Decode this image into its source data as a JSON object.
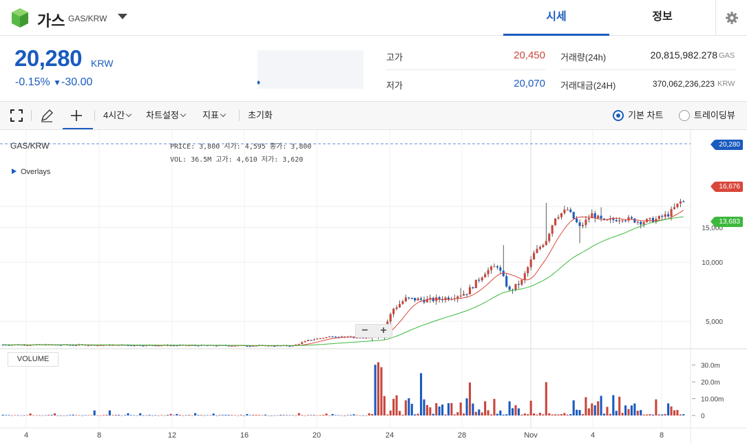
{
  "header": {
    "coin_name": "가스",
    "coin_pair": "GAS/KRW",
    "coin_icon": "neo-gas-cube-icon",
    "tabs": [
      {
        "label": "시세",
        "active": true
      },
      {
        "label": "정보",
        "active": false
      }
    ]
  },
  "price": {
    "current": "20,280",
    "unit": "KRW",
    "change_rate": "-0.15%",
    "change_amount": "-30.00",
    "change_direction": "down",
    "color": "#1a5bbf"
  },
  "stats": {
    "high_label": "고가",
    "high_value": "20,450",
    "high_color": "#c8463c",
    "low_label": "저가",
    "low_value": "20,070",
    "low_color": "#1a5bbf",
    "volume_label": "거래량(24h)",
    "volume_value": "20,815,982.278",
    "volume_unit": "GAS",
    "trade_value_label": "거래대금(24H)",
    "trade_value_value": "370,062,236,223",
    "trade_value_unit": "KRW"
  },
  "toolbar": {
    "interval": "4시간",
    "chart_settings": "차트설정",
    "indicators": "지표",
    "reset": "초기화",
    "basic_chart": "기본 차트",
    "trading_view": "트레이딩뷰",
    "selected_chart": "basic"
  },
  "chart_legend": {
    "symbol": "GAS/KRW",
    "row1": "PRICE: 3,800   시가: 4,595   종가: 3,800",
    "row2": "VOL:  36.5M    고가: 4,610   저가: 3,620",
    "overlays": "Overlays",
    "volume": "VOLUME"
  },
  "chart_data": {
    "type": "candlestick",
    "price_scale": "log",
    "price_ticks": [
      "5,000",
      "10,000",
      "15,000"
    ],
    "price_tick_values": [
      5000,
      10000,
      15000
    ],
    "volume_ticks": [
      "30.0m",
      "20.0m",
      "10.00m",
      "0"
    ],
    "volume_tick_values": [
      30,
      20,
      10,
      0
    ],
    "x_ticks": [
      "4",
      "8",
      "12",
      "16",
      "20",
      "24",
      "28",
      "Nov",
      "4",
      "8"
    ],
    "last_price_tag": "20,280",
    "ma_short_tag": "16,676",
    "ma_long_tag": "13,683",
    "colors": {
      "up": "#c8463c",
      "down": "#1a5bbf",
      "ma_short": "#d9473b",
      "ma_long": "#3cb83c",
      "last": "#1a5bbf"
    },
    "close_path_keypoints": [
      {
        "t": 0,
        "close": 3800
      },
      {
        "t": 95,
        "close": 3750
      },
      {
        "t": 100,
        "close": 4000
      },
      {
        "t": 108,
        "close": 4200
      },
      {
        "t": 118,
        "close": 4100
      },
      {
        "t": 124,
        "close": 4300
      },
      {
        "t": 128,
        "close": 5800
      },
      {
        "t": 132,
        "close": 6500
      },
      {
        "t": 140,
        "close": 6400
      },
      {
        "t": 146,
        "close": 6600
      },
      {
        "t": 152,
        "close": 7000
      },
      {
        "t": 158,
        "close": 8900
      },
      {
        "t": 162,
        "close": 9600
      },
      {
        "t": 166,
        "close": 7100
      },
      {
        "t": 170,
        "close": 8000
      },
      {
        "t": 174,
        "close": 11000
      },
      {
        "t": 178,
        "close": 13000
      },
      {
        "t": 181,
        "close": 17000
      },
      {
        "t": 185,
        "close": 18500
      },
      {
        "t": 189,
        "close": 15000
      },
      {
        "t": 193,
        "close": 17500
      },
      {
        "t": 197,
        "close": 16000
      },
      {
        "t": 203,
        "close": 16800
      },
      {
        "t": 209,
        "close": 16000
      },
      {
        "t": 214,
        "close": 16500
      },
      {
        "t": 218,
        "close": 17500
      },
      {
        "t": 222,
        "close": 20280
      }
    ]
  }
}
